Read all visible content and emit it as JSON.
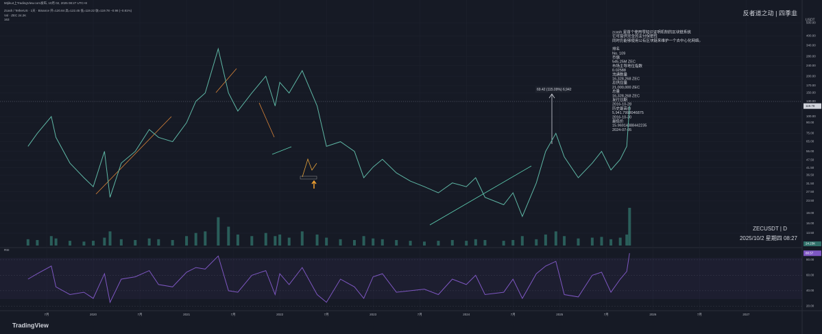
{
  "header": {
    "watermark_line": "50jiku4上TradingView.com发布, 10月 02, 2025 08:27 UTC+8",
    "symbol_line": "Zcash / TetherUS · 1天 · Binance 开=120.84 高=122.45 低=119.22 收=119.78 −0.98 (−0.81%)",
    "volume_line": "Vol · ZEC 24.2K",
    "indicator_label": "163"
  },
  "top_right": "反者道之动 | 四季韭",
  "price_axis": {
    "unit": "USDT",
    "log": true,
    "ylim": [
      12,
      520
    ],
    "current": 119.78,
    "yticks": [
      {
        "value": 500,
        "label": "500.00"
      },
      {
        "value": 400,
        "label": "400.00"
      },
      {
        "value": 340,
        "label": "340.00"
      },
      {
        "value": 280,
        "label": "280.00"
      },
      {
        "value": 240,
        "label": "240.00"
      },
      {
        "value": 200,
        "label": "200.00"
      },
      {
        "value": 170,
        "label": "170.00"
      },
      {
        "value": 150,
        "label": "150.00"
      },
      {
        "value": 130,
        "label": "130.00"
      },
      {
        "value": 100,
        "label": "100.00"
      },
      {
        "value": 90,
        "label": "90.00"
      },
      {
        "value": 75,
        "label": "75.00"
      },
      {
        "value": 65,
        "label": "65.00"
      },
      {
        "value": 55,
        "label": "55.00"
      },
      {
        "value": 47.5,
        "label": "47.50"
      },
      {
        "value": 41.5,
        "label": "41.50"
      },
      {
        "value": 36.5,
        "label": "36.50"
      },
      {
        "value": 31.5,
        "label": "31.50"
      },
      {
        "value": 27.5,
        "label": "27.50"
      },
      {
        "value": 23.5,
        "label": "23.50"
      },
      {
        "value": 19,
        "label": "19.00"
      },
      {
        "value": 16,
        "label": "16.00"
      },
      {
        "value": 13.5,
        "label": "13.50"
      }
    ]
  },
  "time_axis": {
    "xlim": [
      2019.0,
      2027.6
    ],
    "xticks": [
      {
        "value": 2019.5,
        "label": "7月"
      },
      2020,
      {
        "value": 2020.5,
        "label": "7月"
      },
      2021,
      {
        "value": 2021.5,
        "label": "7月"
      },
      2022,
      {
        "value": 2022.5,
        "label": "7月"
      },
      2023,
      {
        "value": 2023.5,
        "label": "7月"
      },
      2024,
      {
        "value": 2024.5,
        "label": "7月"
      },
      2025,
      {
        "value": 2025.5,
        "label": "7月"
      },
      2026,
      {
        "value": 2026.5,
        "label": "7月"
      },
      2027
    ]
  },
  "price_series": {
    "color": "#5fb8a6",
    "x": [
      2019.3,
      2019.4,
      2019.55,
      2019.6,
      2019.75,
      2019.9,
      2020.0,
      2020.12,
      2020.18,
      2020.3,
      2020.45,
      2020.6,
      2020.7,
      2020.85,
      2021.0,
      2021.1,
      2021.2,
      2021.34,
      2021.45,
      2021.55,
      2021.7,
      2021.85,
      2021.95,
      2022.0,
      2022.1,
      2022.24,
      2022.4,
      2022.5,
      2022.65,
      2022.8,
      2022.9,
      2023.0,
      2023.1,
      2023.25,
      2023.4,
      2023.55,
      2023.7,
      2023.85,
      2024.0,
      2024.1,
      2024.2,
      2024.4,
      2024.5,
      2024.6,
      2024.75,
      2024.85,
      2024.96,
      2025.05,
      2025.2,
      2025.35,
      2025.45,
      2025.55,
      2025.65,
      2025.72,
      2025.75
    ],
    "values": [
      60,
      75,
      100,
      70,
      45,
      35,
      30,
      55,
      25,
      45,
      55,
      80,
      70,
      65,
      90,
      130,
      150,
      320,
      150,
      110,
      150,
      200,
      120,
      180,
      150,
      220,
      120,
      60,
      65,
      55,
      35,
      42,
      48,
      38,
      33,
      30,
      27,
      32,
      30,
      35,
      25,
      22,
      27,
      18,
      32,
      55,
      75,
      50,
      35,
      45,
      55,
      40,
      48,
      60,
      120
    ]
  },
  "volume": {
    "color": "#2f6f68",
    "last_label": "24.23K",
    "values": [
      40,
      35,
      60,
      45,
      30,
      25,
      30,
      50,
      90,
      40,
      35,
      45,
      40,
      35,
      60,
      80,
      90,
      180,
      120,
      70,
      60,
      80,
      60,
      70,
      50,
      90,
      70,
      50,
      40,
      35,
      60,
      45,
      40,
      35,
      30,
      25,
      30,
      35,
      30,
      40,
      35,
      30,
      35,
      60,
      40,
      70,
      90,
      60,
      45,
      50,
      55,
      40,
      50,
      70,
      240
    ]
  },
  "rsi": {
    "label": "RSI",
    "color": "#7e57c2",
    "ylim": [
      15,
      95
    ],
    "current": 88.57,
    "yticks": [
      {
        "value": 80,
        "label": "80.00"
      },
      {
        "value": 60,
        "label": "60.00"
      },
      {
        "value": 40,
        "label": "40.00"
      },
      {
        "value": 20,
        "label": "20.00"
      }
    ],
    "values": [
      55,
      62,
      72,
      45,
      35,
      38,
      30,
      62,
      25,
      55,
      58,
      66,
      48,
      45,
      64,
      70,
      68,
      85,
      40,
      38,
      60,
      66,
      35,
      62,
      48,
      70,
      35,
      25,
      55,
      45,
      30,
      58,
      62,
      38,
      40,
      42,
      35,
      55,
      48,
      60,
      35,
      38,
      55,
      30,
      62,
      72,
      78,
      35,
      32,
      60,
      64,
      38,
      55,
      65,
      88.57
    ]
  },
  "measure_label": "69.42 (115.09%) 6,942",
  "info_lines": [
    "zcash 是首个使用零知识证明机制的区块链系统",
    "它可提供完全的支付保密性",
    "同时仍能够使用公有区块链来维护一个去中心化网络。",
    "排名",
    "No. 109",
    "市值",
    "545.25M ZEC",
    "市场主导地位指数",
    "0.02588",
    "流通数量",
    "16,328,268 ZEC",
    "总供应量",
    "21,000,000 ZEC",
    "总量",
    "16,328,268 ZEC",
    "发行日期",
    "2016-10-28",
    "历史最高价",
    "5,941.7998046875",
    "2016-10-30",
    "最低价",
    "15.96914388442235",
    "2024-07-05"
  ],
  "symbol_footer": "ZECUSDT | D",
  "datetime": "2025/10/2 星期四 08:27",
  "brand": "TradingView"
}
